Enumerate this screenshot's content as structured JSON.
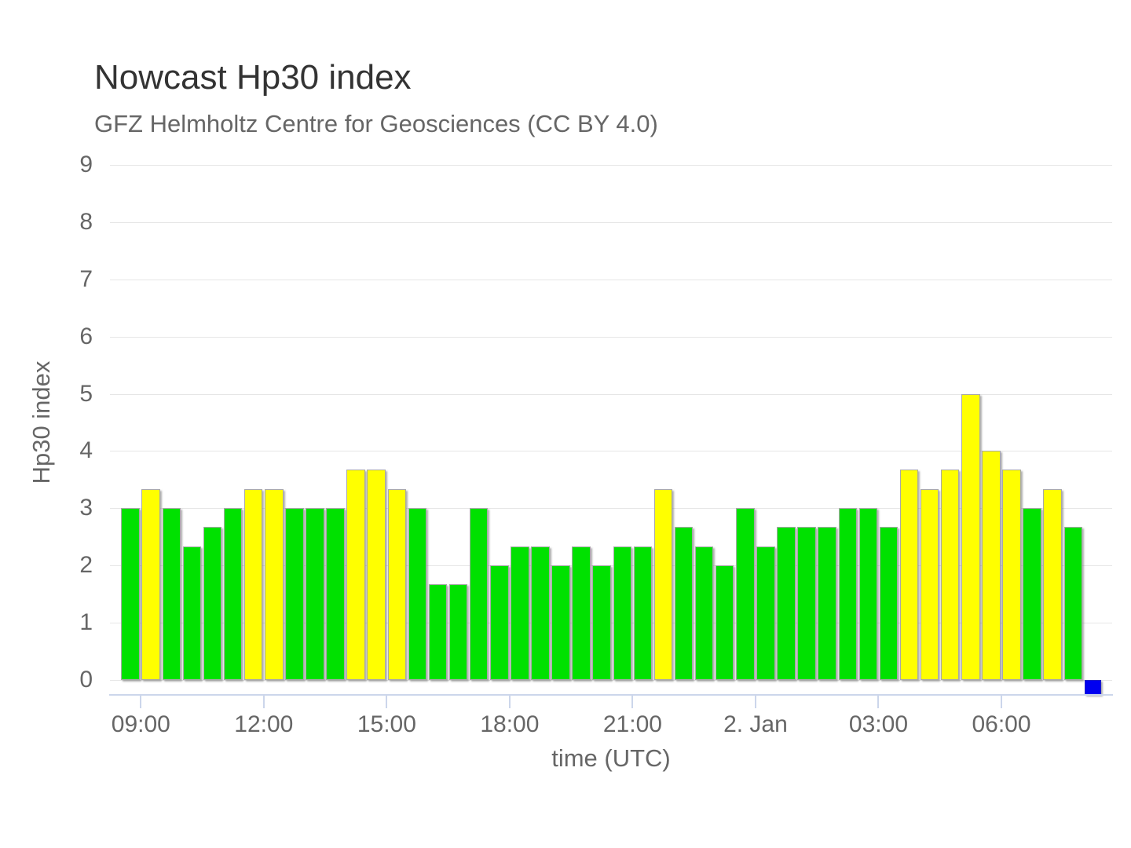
{
  "header": {
    "title": "Nowcast Hp30 index",
    "subtitle": "GFZ Helmholtz Centre for Geosciences (CC BY 4.0)"
  },
  "colors": {
    "green": "#00e100",
    "yellow": "#ffff00",
    "blue": "#0000f0",
    "grid": "#e6e6e6",
    "axis_line": "#ccd6eb",
    "label_text": "#666666",
    "title_text": "#333333"
  },
  "chart_data": {
    "type": "bar",
    "title": "Nowcast Hp30 index",
    "subtitle": "GFZ Helmholtz Centre for Geosciences (CC BY 4.0)",
    "xlabel": "time (UTC)",
    "ylabel": "Hp30 index",
    "ylim": [
      0,
      9
    ],
    "y_ticks": [
      0,
      1,
      2,
      3,
      4,
      5,
      6,
      7,
      8,
      9
    ],
    "x_tick_labels": [
      "09:00",
      "12:00",
      "15:00",
      "18:00",
      "21:00",
      "2. Jan",
      "03:00",
      "06:00"
    ],
    "grid": "on",
    "legend": "none",
    "interval_minutes": 30,
    "bars": [
      {
        "time": "08:30",
        "value": 3,
        "color": "green"
      },
      {
        "time": "09:00",
        "value": 3.33,
        "color": "yellow"
      },
      {
        "time": "09:30",
        "value": 3,
        "color": "green"
      },
      {
        "time": "10:00",
        "value": 2.33,
        "color": "green"
      },
      {
        "time": "10:30",
        "value": 2.67,
        "color": "green"
      },
      {
        "time": "11:00",
        "value": 3,
        "color": "green"
      },
      {
        "time": "11:30",
        "value": 3.33,
        "color": "yellow"
      },
      {
        "time": "12:00",
        "value": 3.33,
        "color": "yellow"
      },
      {
        "time": "12:30",
        "value": 3,
        "color": "green"
      },
      {
        "time": "13:00",
        "value": 3,
        "color": "green"
      },
      {
        "time": "13:30",
        "value": 3,
        "color": "green"
      },
      {
        "time": "14:00",
        "value": 3.67,
        "color": "yellow"
      },
      {
        "time": "14:30",
        "value": 3.67,
        "color": "yellow"
      },
      {
        "time": "15:00",
        "value": 3.33,
        "color": "yellow"
      },
      {
        "time": "15:30",
        "value": 3,
        "color": "green"
      },
      {
        "time": "16:00",
        "value": 1.67,
        "color": "green"
      },
      {
        "time": "16:30",
        "value": 1.67,
        "color": "green"
      },
      {
        "time": "17:00",
        "value": 3,
        "color": "green"
      },
      {
        "time": "17:30",
        "value": 2,
        "color": "green"
      },
      {
        "time": "18:00",
        "value": 2.33,
        "color": "green"
      },
      {
        "time": "18:30",
        "value": 2.33,
        "color": "green"
      },
      {
        "time": "19:00",
        "value": 2,
        "color": "green"
      },
      {
        "time": "19:30",
        "value": 2.33,
        "color": "green"
      },
      {
        "time": "20:00",
        "value": 2,
        "color": "green"
      },
      {
        "time": "20:30",
        "value": 2.33,
        "color": "green"
      },
      {
        "time": "21:00",
        "value": 2.33,
        "color": "green"
      },
      {
        "time": "21:30",
        "value": 3.33,
        "color": "yellow"
      },
      {
        "time": "22:00",
        "value": 2.67,
        "color": "green"
      },
      {
        "time": "22:30",
        "value": 2.33,
        "color": "green"
      },
      {
        "time": "23:00",
        "value": 2,
        "color": "green"
      },
      {
        "time": "23:30",
        "value": 3,
        "color": "green"
      },
      {
        "time": "00:00",
        "value": 2.33,
        "color": "green"
      },
      {
        "time": "00:30",
        "value": 2.67,
        "color": "green"
      },
      {
        "time": "01:00",
        "value": 2.67,
        "color": "green"
      },
      {
        "time": "01:30",
        "value": 2.67,
        "color": "green"
      },
      {
        "time": "02:00",
        "value": 3,
        "color": "green"
      },
      {
        "time": "02:30",
        "value": 3,
        "color": "green"
      },
      {
        "time": "03:00",
        "value": 2.67,
        "color": "green"
      },
      {
        "time": "03:30",
        "value": 3.67,
        "color": "yellow"
      },
      {
        "time": "04:00",
        "value": 3.33,
        "color": "yellow"
      },
      {
        "time": "04:30",
        "value": 3.67,
        "color": "yellow"
      },
      {
        "time": "05:00",
        "value": 5,
        "color": "yellow"
      },
      {
        "time": "05:30",
        "value": 4,
        "color": "yellow"
      },
      {
        "time": "06:00",
        "value": 3.67,
        "color": "yellow"
      },
      {
        "time": "06:30",
        "value": 3,
        "color": "green"
      },
      {
        "time": "07:00",
        "value": 3.33,
        "color": "yellow"
      },
      {
        "time": "07:30",
        "value": 2.67,
        "color": "green"
      }
    ],
    "marker": {
      "time": "08:00",
      "value": 0,
      "color": "blue"
    }
  }
}
